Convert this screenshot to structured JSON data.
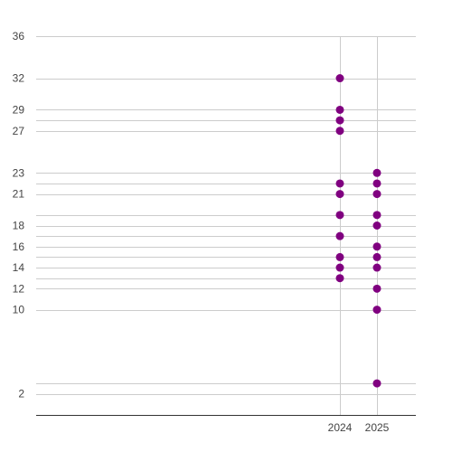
{
  "chart_data": {
    "type": "scatter",
    "title": "",
    "xlabel": "",
    "ylabel": "",
    "x_ticks": [
      "2024",
      "2025"
    ],
    "y_ticks": [
      36,
      32,
      29,
      27,
      23,
      21,
      18,
      16,
      14,
      12,
      10,
      2
    ],
    "y_gridlines": [
      36,
      32,
      29,
      28,
      27,
      23,
      22,
      21,
      19,
      18,
      17,
      16,
      15,
      14,
      13,
      12,
      10,
      3,
      2
    ],
    "ylim": [
      0,
      36
    ],
    "grid": true,
    "legend": "none",
    "marker_color": "#800080",
    "grid_color": "#cccccc",
    "series": [
      {
        "x": "2024",
        "values": [
          32,
          29,
          28,
          27,
          22,
          21,
          19,
          17,
          15,
          14,
          13
        ]
      },
      {
        "x": "2025",
        "values": [
          23,
          22,
          21,
          19,
          18,
          16,
          15,
          14,
          12,
          10,
          3
        ]
      }
    ]
  }
}
